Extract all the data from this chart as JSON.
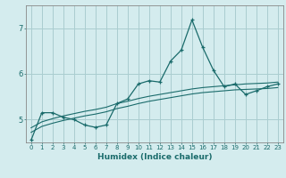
{
  "xlabel": "Humidex (Indice chaleur)",
  "bg_color": "#d4ecee",
  "grid_color": "#aacdd0",
  "line_color": "#1a6b6b",
  "x_data": [
    0,
    1,
    2,
    3,
    4,
    5,
    6,
    7,
    8,
    9,
    10,
    11,
    12,
    13,
    14,
    15,
    16,
    17,
    18,
    19,
    20,
    21,
    22,
    23
  ],
  "line1_y": [
    4.55,
    5.15,
    5.15,
    5.05,
    5.0,
    4.88,
    4.83,
    4.88,
    5.35,
    5.45,
    5.78,
    5.85,
    5.82,
    6.28,
    6.52,
    7.18,
    6.58,
    6.08,
    5.72,
    5.78,
    5.55,
    5.63,
    5.72,
    5.78
  ],
  "line2_y": [
    4.82,
    4.95,
    5.02,
    5.08,
    5.13,
    5.18,
    5.22,
    5.27,
    5.35,
    5.4,
    5.46,
    5.51,
    5.55,
    5.59,
    5.63,
    5.67,
    5.7,
    5.72,
    5.74,
    5.76,
    5.78,
    5.79,
    5.8,
    5.82
  ],
  "line3_y": [
    4.72,
    4.85,
    4.92,
    4.98,
    5.03,
    5.08,
    5.12,
    5.17,
    5.24,
    5.29,
    5.35,
    5.4,
    5.44,
    5.48,
    5.52,
    5.56,
    5.59,
    5.61,
    5.63,
    5.65,
    5.66,
    5.67,
    5.68,
    5.7
  ],
  "xlim": [
    -0.5,
    23.5
  ],
  "ylim": [
    4.5,
    7.5
  ],
  "yticks": [
    5,
    6,
    7
  ],
  "xticks": [
    0,
    1,
    2,
    3,
    4,
    5,
    6,
    7,
    8,
    9,
    10,
    11,
    12,
    13,
    14,
    15,
    16,
    17,
    18,
    19,
    20,
    21,
    22,
    23
  ]
}
